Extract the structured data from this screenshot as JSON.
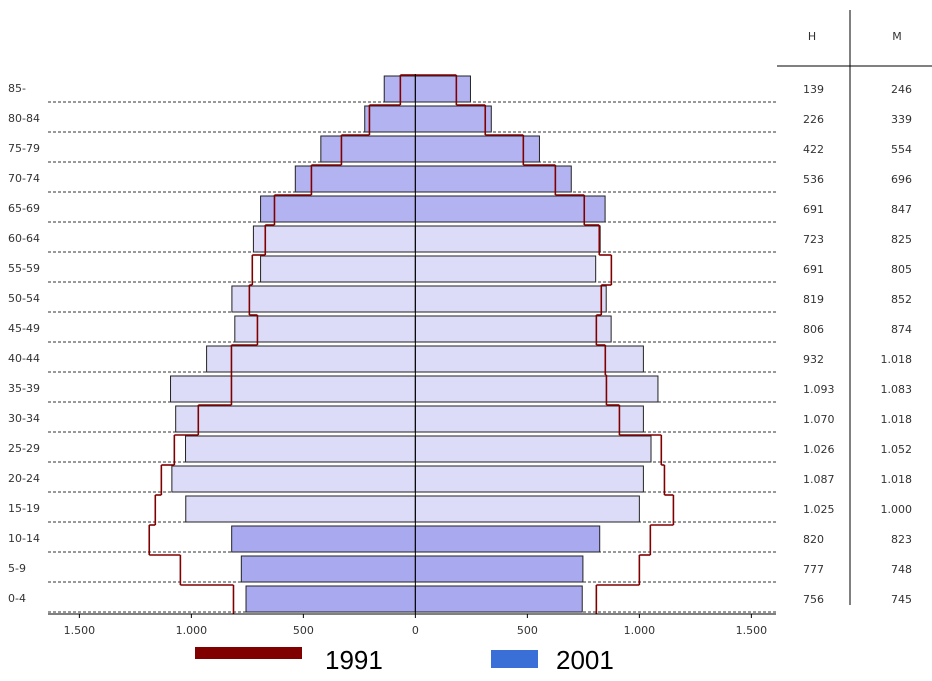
{
  "chart_data": {
    "type": "pyramid",
    "categories": [
      "85-",
      "80-84",
      "75-79",
      "70-74",
      "65-69",
      "60-64",
      "55-59",
      "50-54",
      "45-49",
      "40-44",
      "35-39",
      "30-34",
      "25-29",
      "20-24",
      "15-19",
      "10-14",
      "5-9",
      "0-4"
    ],
    "table_headers": [
      "H",
      "M"
    ],
    "xlim": [
      -1640,
      1610
    ],
    "xticks": [
      {
        "value": -1500,
        "label": "1.500"
      },
      {
        "value": -1000,
        "label": "1.000"
      },
      {
        "value": -500,
        "label": "500"
      },
      0,
      500,
      {
        "value": 1000,
        "label": "1.000"
      },
      {
        "value": 1500,
        "label": "1.500"
      }
    ],
    "grid": true,
    "series": [
      {
        "name": "1991",
        "color": "#800000",
        "men": [
          67,
          205,
          330,
          464,
          629,
          670,
          728,
          741,
          705,
          821,
          821,
          969,
          1076,
          1134,
          1161,
          1188,
          1049,
          812
        ],
        "women": [
          183,
          312,
          482,
          625,
          754,
          821,
          875,
          830,
          808,
          848,
          853,
          911,
          1098,
          1112,
          1152,
          1049,
          1000,
          808
        ]
      },
      {
        "name": "2001",
        "color": "#3a6fd8",
        "bar_colors": [
          "#b3b3f2",
          "#b3b3f2",
          "#b3b3f2",
          "#b3b3f2",
          "#b3b3f2",
          "#dcdcf8",
          "#dcdcf8",
          "#dcdcf8",
          "#dcdcf8",
          "#dcdcf8",
          "#dcdcf8",
          "#dcdcf8",
          "#dcdcf8",
          "#dcdcf8",
          "#dcdcf8",
          "#a9a9f0",
          "#a9a9f0",
          "#a9a9f0"
        ],
        "men": [
          139,
          226,
          422,
          536,
          691,
          723,
          691,
          819,
          806,
          932,
          1093,
          1070,
          1026,
          1087,
          1025,
          820,
          777,
          756
        ],
        "men_labels": [
          "139",
          "226",
          "422",
          "536",
          "691",
          "723",
          "691",
          "819",
          "806",
          "932",
          "1.093",
          "1.070",
          "1.026",
          "1.087",
          "1.025",
          "820",
          "777",
          "756"
        ],
        "women": [
          246,
          339,
          554,
          696,
          847,
          825,
          805,
          852,
          874,
          1018,
          1083,
          1018,
          1052,
          1018,
          1000,
          823,
          748,
          745
        ],
        "women_labels": [
          "246",
          "339",
          "554",
          "696",
          "847",
          "825",
          "805",
          "852",
          "874",
          "1.018",
          "1.083",
          "1.018",
          "1.052",
          "1.018",
          "1.000",
          "823",
          "748",
          "745"
        ]
      }
    ]
  }
}
